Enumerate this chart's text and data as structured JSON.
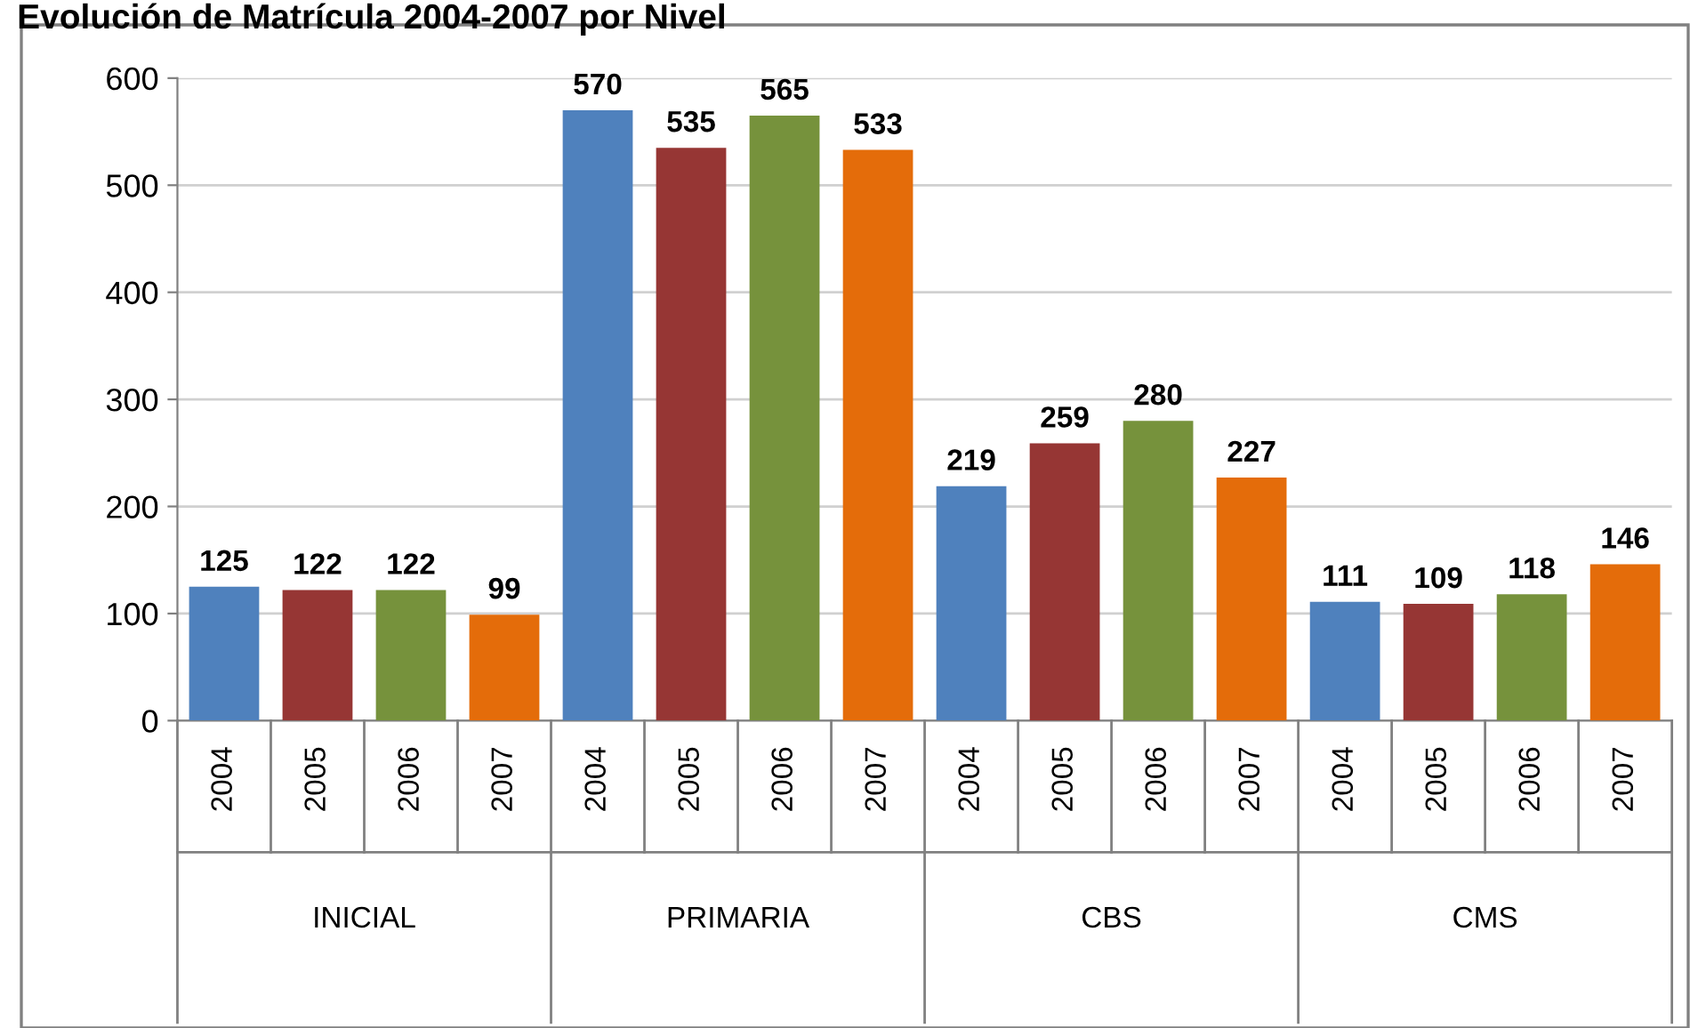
{
  "chart_data": {
    "type": "bar",
    "title": "Evolución de Matrícula 2004-2007 por Nivel",
    "categories": [
      "INICIAL",
      "PRIMARIA",
      "CBS",
      "CMS"
    ],
    "series": [
      {
        "name": "2004",
        "color": "#4f81bd",
        "values": [
          125,
          570,
          219,
          111
        ]
      },
      {
        "name": "2005",
        "color": "#963634",
        "values": [
          122,
          535,
          259,
          109
        ]
      },
      {
        "name": "2006",
        "color": "#76923c",
        "values": [
          122,
          565,
          280,
          118
        ]
      },
      {
        "name": "2007",
        "color": "#e46c0a",
        "values": [
          99,
          533,
          227,
          146
        ]
      }
    ],
    "ylim": [
      0,
      600
    ],
    "yticks": [
      0,
      100,
      200,
      300,
      400,
      500,
      600
    ],
    "grid": "y",
    "data_labels": true,
    "legend": false
  }
}
